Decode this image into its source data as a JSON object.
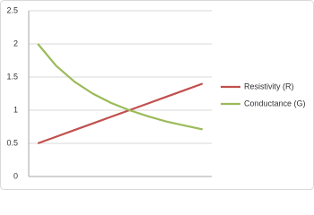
{
  "chart_data": {
    "type": "line",
    "categories": [
      null,
      null,
      null,
      null,
      null,
      null,
      null,
      null,
      null,
      null
    ],
    "series": [
      {
        "name": "Resistivity (R)",
        "color": "#c0504d",
        "values": [
          0.5,
          0.6,
          0.7,
          0.8,
          0.9,
          1.0,
          1.1,
          1.2,
          1.3,
          1.4
        ]
      },
      {
        "name": "Conductance (G)",
        "color": "#9bbb59",
        "values": [
          2.0,
          1.67,
          1.43,
          1.25,
          1.11,
          1.0,
          0.91,
          0.83,
          0.77,
          0.71
        ]
      }
    ],
    "ylim": [
      0,
      2.5
    ],
    "yticks": [
      0,
      0.5,
      1,
      1.5,
      2,
      2.5
    ],
    "grid": true,
    "legend": "right"
  }
}
